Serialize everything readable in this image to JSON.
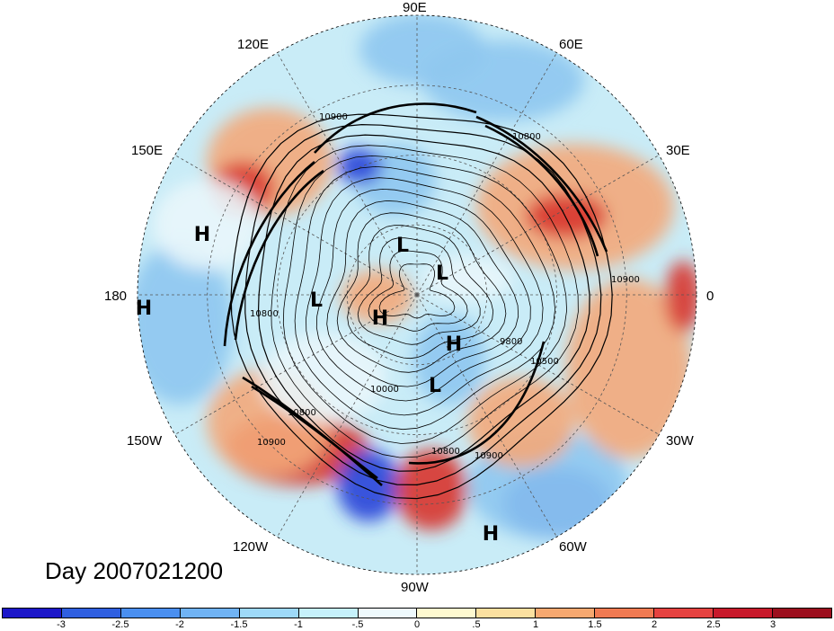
{
  "title": "Day 2007021200",
  "longitude_labels": {
    "top": "90E",
    "top_right": "60E",
    "right_upper": "30E",
    "right": "0",
    "right_lower": "30W",
    "bottom_right": "60W",
    "bottom": "90W",
    "bottom_left": "120W",
    "left_lower": "150W",
    "left": "180",
    "left_upper": "150E",
    "top_left": "120E"
  },
  "pressure_systems": [
    {
      "label": "H",
      "kind": "high"
    },
    {
      "label": "H",
      "kind": "high"
    },
    {
      "label": "L",
      "kind": "low"
    },
    {
      "label": "L",
      "kind": "low"
    },
    {
      "label": "L",
      "kind": "low"
    },
    {
      "label": "H",
      "kind": "high"
    },
    {
      "label": "H",
      "kind": "high"
    },
    {
      "label": "L",
      "kind": "low"
    },
    {
      "label": "H",
      "kind": "high"
    }
  ],
  "contour_labels": [
    "10900",
    "10800",
    "10800",
    "10800",
    "10900",
    "10000",
    "9800",
    "10500",
    "10900",
    "10900",
    "10800"
  ],
  "colorbar": {
    "ticks": [
      "-3",
      "-2.5",
      "-2",
      "-1.5",
      "-1",
      "-.5",
      "0",
      ".5",
      "1",
      "1.5",
      "2",
      "2.5",
      "3"
    ],
    "colors": [
      "#1c17c9",
      "#2f5fe0",
      "#4a8ff0",
      "#70b3f4",
      "#9ed9f8",
      "#c6f1fb",
      "#eef9fc",
      "#fef9d0",
      "#fbe0a0",
      "#f6a870",
      "#f07a52",
      "#e54240",
      "#c8192b",
      "#9c0f1e"
    ]
  },
  "field_colors": {
    "ocean_blue": "#8ec6ef",
    "deep_blue": "#2a43d8",
    "pale": "#e9f6fb",
    "warm": "#f3a87a",
    "hot": "#d8352f"
  }
}
